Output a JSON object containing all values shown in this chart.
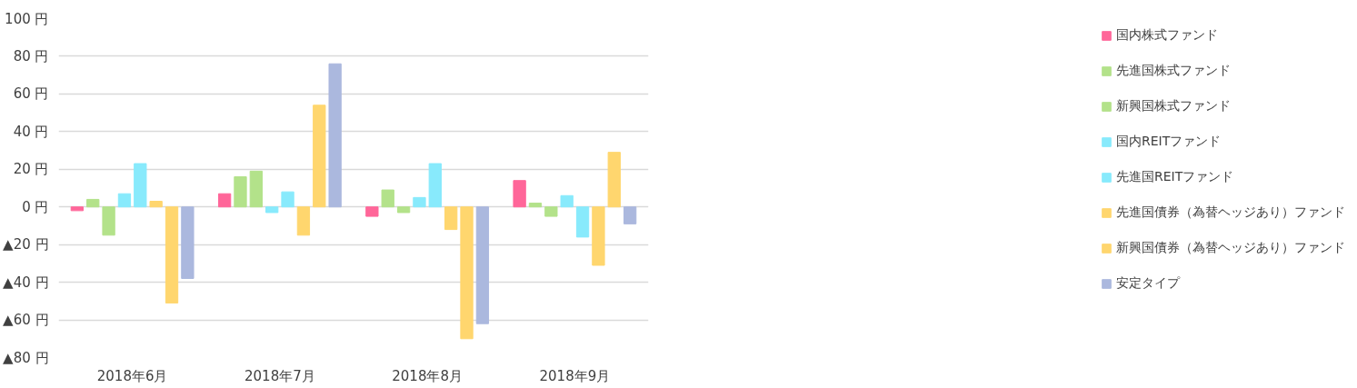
{
  "chart_data": {
    "type": "bar",
    "categories": [
      "2018年6月",
      "2018年7月",
      "2018年8月",
      "2018年9月"
    ],
    "ylim": [
      -80,
      100
    ],
    "yticks": [
      {
        "value": 100,
        "label": "100 円"
      },
      {
        "value": 80,
        "label": "80 円"
      },
      {
        "value": 60,
        "label": "60 円"
      },
      {
        "value": 40,
        "label": "40 円"
      },
      {
        "value": 20,
        "label": "20 円"
      },
      {
        "value": 0,
        "label": "0 円"
      },
      {
        "value": -20,
        "label": "▲20 円"
      },
      {
        "value": -40,
        "label": "▲40 円"
      },
      {
        "value": -60,
        "label": "▲60 円"
      },
      {
        "value": -80,
        "label": "▲80 円"
      }
    ],
    "grid": "y",
    "legend": "right",
    "series": [
      {
        "name": "国内株式ファンド",
        "color": "#ff6699",
        "values": [
          -2,
          7,
          -5,
          14
        ]
      },
      {
        "name": "先進国株式ファンド",
        "color": "#b3e28a",
        "values": [
          4,
          16,
          9,
          2
        ]
      },
      {
        "name": "新興国株式ファンド",
        "color": "#b3e28a",
        "values": [
          -15,
          19,
          -3,
          -5
        ]
      },
      {
        "name": "国内REITファンド",
        "color": "#88eafc",
        "values": [
          7,
          -3,
          5,
          6
        ]
      },
      {
        "name": "先進国REITファンド",
        "color": "#88eafc",
        "values": [
          23,
          8,
          23,
          -16
        ]
      },
      {
        "name": "先進国債券（為替ヘッジあり）ファンド",
        "color": "#ffd66e",
        "values": [
          3,
          -15,
          -12,
          -31
        ]
      },
      {
        "name": "新興国債券（為替ヘッジあり）ファンド",
        "color": "#ffd66e",
        "values": [
          -51,
          54,
          -70,
          29
        ]
      },
      {
        "name": "安定タイプ",
        "color": "#abb8de",
        "values": [
          -38,
          76,
          -62,
          -9
        ]
      }
    ]
  }
}
